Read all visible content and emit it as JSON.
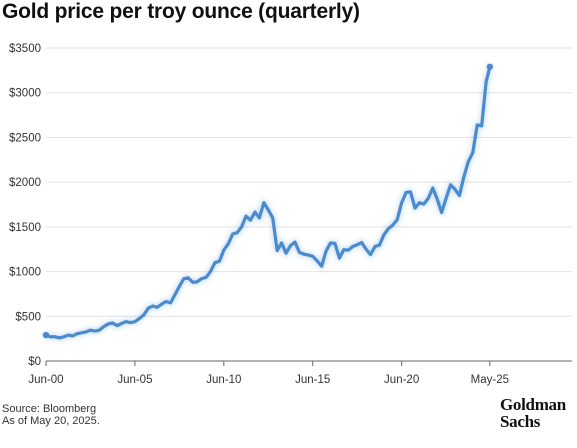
{
  "page": {
    "title": "Gold price per troy ounce (quarterly)",
    "source": "Source: Bloomberg",
    "asof": "As of May 20, 2025.",
    "logo_line1": "Goldman",
    "logo_line2": "Sachs"
  },
  "colors": {
    "line": "#4a8bd0",
    "grid": "#e2e2e2",
    "axis": "#666666"
  },
  "chart_data": {
    "type": "line",
    "title": "Gold price per troy ounce (quarterly)",
    "xlabel": "",
    "ylabel": "",
    "ylim": [
      0,
      3500
    ],
    "xlim": [
      2000.42,
      2030.0
    ],
    "grid": true,
    "yticks": [
      {
        "value": 0,
        "label": "$0"
      },
      {
        "value": 500,
        "label": "$500"
      },
      {
        "value": 1000,
        "label": "$1000"
      },
      {
        "value": 1500,
        "label": "$1500"
      },
      {
        "value": 2000,
        "label": "$2000"
      },
      {
        "value": 2500,
        "label": "$2500"
      },
      {
        "value": 3000,
        "label": "$3000"
      },
      {
        "value": 3500,
        "label": "$3500"
      }
    ],
    "xticks": [
      {
        "value": 2000.42,
        "label": "Jun-00"
      },
      {
        "value": 2005.42,
        "label": "Jun-05"
      },
      {
        "value": 2010.42,
        "label": "Jun-10"
      },
      {
        "value": 2015.42,
        "label": "Jun-15"
      },
      {
        "value": 2020.42,
        "label": "Jun-20"
      },
      {
        "value": 2025.38,
        "label": "May-25"
      }
    ],
    "series": [
      {
        "x": [
          2000.42,
          2000.67,
          2000.92,
          2001.17,
          2001.42,
          2001.67,
          2001.92,
          2002.17,
          2002.42,
          2002.67,
          2002.92,
          2003.17,
          2003.42,
          2003.67,
          2003.92,
          2004.17,
          2004.42,
          2004.67,
          2004.92,
          2005.17,
          2005.42,
          2005.67,
          2005.92,
          2006.17,
          2006.42,
          2006.67,
          2006.92,
          2007.17,
          2007.42,
          2007.67,
          2007.92,
          2008.17,
          2008.42,
          2008.67,
          2008.92,
          2009.17,
          2009.42,
          2009.67,
          2009.92,
          2010.17,
          2010.42,
          2010.67,
          2010.92,
          2011.17,
          2011.42,
          2011.67,
          2011.92,
          2012.17,
          2012.42,
          2012.67,
          2012.92,
          2013.17,
          2013.42,
          2013.67,
          2013.92,
          2014.17,
          2014.42,
          2014.67,
          2014.92,
          2015.17,
          2015.42,
          2015.67,
          2015.92,
          2016.17,
          2016.42,
          2016.67,
          2016.92,
          2017.17,
          2017.42,
          2017.67,
          2017.92,
          2018.17,
          2018.42,
          2018.67,
          2018.92,
          2019.17,
          2019.42,
          2019.67,
          2019.92,
          2020.17,
          2020.42,
          2020.67,
          2020.92,
          2021.17,
          2021.42,
          2021.67,
          2021.92,
          2022.17,
          2022.42,
          2022.67,
          2022.92,
          2023.17,
          2023.42,
          2023.67,
          2023.92,
          2024.17,
          2024.42,
          2024.67,
          2024.92,
          2025.17,
          2025.38
        ],
        "values": [
          290,
          270,
          272,
          258,
          270,
          290,
          280,
          305,
          315,
          325,
          345,
          335,
          345,
          385,
          415,
          425,
          395,
          420,
          440,
          430,
          440,
          475,
          515,
          590,
          615,
          600,
          635,
          665,
          650,
          740,
          835,
          920,
          930,
          880,
          885,
          920,
          935,
          1000,
          1100,
          1115,
          1240,
          1310,
          1420,
          1435,
          1500,
          1620,
          1575,
          1665,
          1600,
          1770,
          1690,
          1600,
          1235,
          1320,
          1205,
          1290,
          1330,
          1215,
          1195,
          1185,
          1170,
          1120,
          1060,
          1230,
          1320,
          1315,
          1150,
          1245,
          1240,
          1280,
          1300,
          1325,
          1250,
          1190,
          1280,
          1295,
          1410,
          1480,
          1520,
          1580,
          1770,
          1885,
          1890,
          1710,
          1770,
          1755,
          1820,
          1935,
          1810,
          1660,
          1820,
          1970,
          1920,
          1850,
          2060,
          2230,
          2330,
          2640,
          2630,
          3120,
          3290
        ]
      }
    ]
  }
}
